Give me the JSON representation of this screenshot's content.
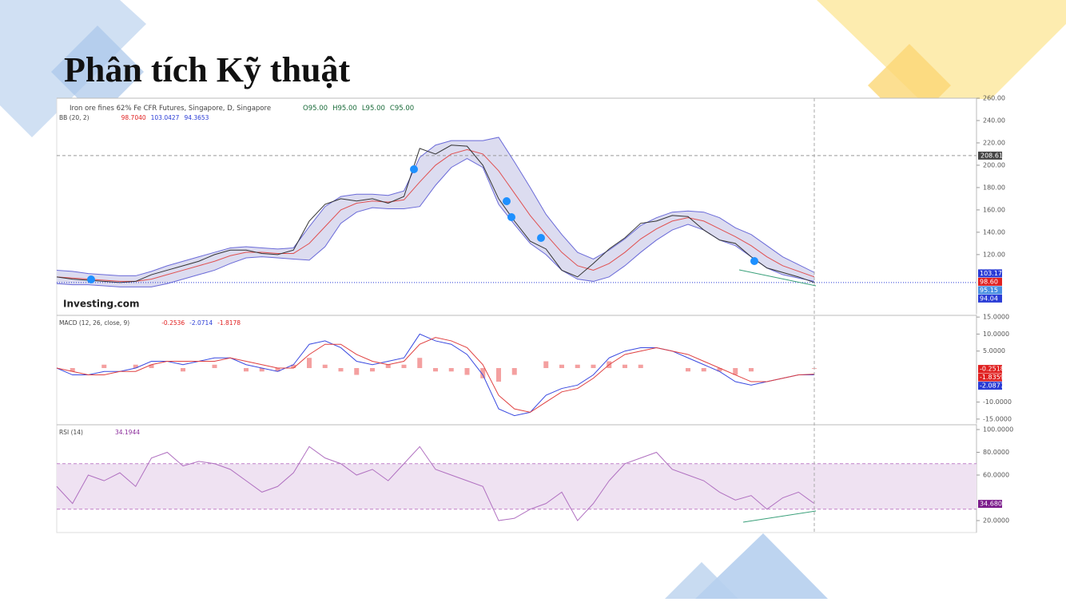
{
  "title": "Phân tích Kỹ thuật",
  "chart_data": [
    {
      "type": "line",
      "title": "Iron ore fines 62% Fe CFR Futures, Singapore, D, Singapore",
      "ohlc": [
        "O95.00",
        "H95.00",
        "L95.00",
        "C95.00"
      ],
      "indicator": "BB (20, 2)",
      "indicator_values": [
        {
          "label": "98.7040",
          "color": "#e02020"
        },
        {
          "label": "103.0427",
          "color": "#2a3cd6"
        },
        {
          "label": "94.3653",
          "color": "#2a3cd6"
        }
      ],
      "watermark": "Investing.com",
      "ylim": [
        67,
        260
      ],
      "yticks": [
        {
          "value": 260,
          "label": "260.00"
        },
        {
          "value": 240,
          "label": "240.00"
        },
        {
          "value": 220,
          "label": "220.00"
        },
        {
          "value": 200,
          "label": "200.00"
        },
        {
          "value": 180,
          "label": "180.00"
        },
        {
          "value": 160,
          "label": "160.00"
        },
        {
          "value": 140,
          "label": "140.00"
        },
        {
          "value": 120,
          "label": "120.00"
        }
      ],
      "band_fill": "#dcdcf0",
      "crosshair": {
        "value": 208.61,
        "label": "208.61",
        "color": "#444444"
      },
      "tags": [
        {
          "value": 103.17,
          "label": "103.17",
          "color": "#2a3cd6"
        },
        {
          "value": 98.6,
          "label": "98.60",
          "color": "#e02020"
        },
        {
          "value": 95.15,
          "label": "95.15",
          "color": "#4a90e2"
        },
        {
          "value": 94.04,
          "label": "94.04",
          "color": "#2a3cd6"
        }
      ],
      "series": [
        {
          "color": "#6a6ad8",
          "values": [
            106,
            105,
            103,
            102,
            101,
            101,
            105,
            110,
            114,
            118,
            122,
            126,
            127,
            126,
            125,
            126,
            145,
            163,
            172,
            174,
            174,
            173,
            177,
            207,
            218,
            222,
            222,
            222,
            225,
            203,
            180,
            156,
            138,
            122,
            116,
            124,
            134,
            146,
            153,
            158,
            159,
            158,
            153,
            144,
            138,
            128,
            118,
            111,
            104
          ]
        },
        {
          "color": "#6a6ad8",
          "values": [
            94,
            93,
            93,
            92,
            91,
            91,
            91,
            94,
            98,
            102,
            106,
            112,
            117,
            118,
            117,
            116,
            115,
            127,
            148,
            158,
            162,
            161,
            161,
            163,
            182,
            198,
            206,
            198,
            165,
            147,
            130,
            120,
            106,
            98,
            96,
            100,
            110,
            122,
            133,
            142,
            147,
            142,
            133,
            128,
            118,
            108,
            102,
            99,
            96
          ]
        },
        {
          "color": "#e05050",
          "values": [
            100,
            99,
            98,
            97,
            96,
            96,
            98,
            102,
            106,
            110,
            114,
            119,
            122,
            122,
            121,
            121,
            130,
            145,
            160,
            166,
            168,
            167,
            169,
            185,
            200,
            210,
            214,
            210,
            195,
            175,
            155,
            138,
            122,
            110,
            106,
            112,
            122,
            134,
            143,
            150,
            153,
            150,
            143,
            136,
            128,
            118,
            110,
            105,
            100
          ]
        },
        {
          "color": "#333333",
          "values": [
            100,
            98,
            97,
            96,
            95,
            96,
            102,
            106,
            110,
            114,
            120,
            124,
            124,
            121,
            120,
            124,
            150,
            165,
            170,
            168,
            170,
            166,
            172,
            215,
            210,
            218,
            217,
            200,
            170,
            150,
            132,
            125,
            106,
            100,
            112,
            125,
            135,
            148,
            150,
            155,
            154,
            142,
            133,
            130,
            118,
            108,
            104,
            100,
            95
          ]
        }
      ]
    },
    {
      "type": "line",
      "indicator": "MACD (12, 26, close, 9)",
      "indicator_values": [
        {
          "label": "-0.2536",
          "color": "#e02020"
        },
        {
          "label": "-2.0714",
          "color": "#2a3cd6"
        },
        {
          "label": "-1.8178",
          "color": "#e02020"
        }
      ],
      "ylim": [
        -16.2,
        15.5
      ],
      "yticks": [
        {
          "value": 15,
          "label": "15.0000"
        },
        {
          "value": 10,
          "label": "10.0000"
        },
        {
          "value": 5,
          "label": "5.0000"
        },
        {
          "value": -10,
          "label": "-10.0000"
        },
        {
          "value": -15,
          "label": "-15.0000"
        }
      ],
      "tags": [
        {
          "value": -0.2518,
          "label": "-0.2518",
          "color": "#e02020"
        },
        {
          "value": -1.8359,
          "label": "-1.8359",
          "color": "#e02020"
        },
        {
          "value": -2.0877,
          "label": "-2.0877",
          "color": "#2a3cd6"
        }
      ],
      "series": [
        {
          "type": "bar",
          "color": "#f4a0a0",
          "values": [
            0,
            -1,
            0,
            1,
            0,
            1,
            1,
            0,
            -1,
            0,
            1,
            0,
            -1,
            -1,
            -1,
            1,
            3,
            1,
            -1,
            -2,
            -1,
            1,
            1,
            3,
            -1,
            -1,
            -2,
            -3,
            -4,
            -2,
            0,
            2,
            1,
            1,
            1,
            2,
            1,
            1,
            0,
            0,
            -1,
            -1,
            -1,
            -2,
            -1,
            0,
            0,
            0,
            -0.2
          ]
        },
        {
          "color": "#3a4ae0",
          "values": [
            0,
            -2,
            -2,
            -1,
            -1,
            0,
            2,
            2,
            1,
            2,
            3,
            3,
            1,
            0,
            -1,
            1,
            7,
            8,
            6,
            2,
            1,
            2,
            3,
            10,
            8,
            7,
            4,
            -2,
            -12,
            -14,
            -13,
            -8,
            -6,
            -5,
            -2,
            3,
            5,
            6,
            6,
            5,
            3,
            1,
            -1,
            -4,
            -5,
            -4,
            -3,
            -2,
            -2
          ]
        },
        {
          "color": "#e04040",
          "values": [
            0,
            -1,
            -2,
            -2,
            -1,
            -1,
            1,
            2,
            2,
            2,
            2,
            3,
            2,
            1,
            0,
            0,
            4,
            7,
            7,
            4,
            2,
            1,
            2,
            7,
            9,
            8,
            6,
            1,
            -8,
            -12,
            -13,
            -10,
            -7,
            -6,
            -3,
            1,
            4,
            5,
            6,
            5,
            4,
            2,
            0,
            -2,
            -4,
            -4,
            -3,
            -2,
            -1.8
          ]
        }
      ]
    },
    {
      "type": "line",
      "indicator": "RSI (14)",
      "indicator_values": [
        {
          "label": "34.1944",
          "color": "#8a2a9a"
        }
      ],
      "ylim": [
        9.5,
        104.2
      ],
      "yticks": [
        {
          "value": 100,
          "label": "100.0000"
        },
        {
          "value": 80,
          "label": "80.0000"
        },
        {
          "value": 60,
          "label": "60.0000"
        },
        {
          "value": 20,
          "label": "20.0000"
        }
      ],
      "band": [
        30,
        70
      ],
      "band_fill": "#efe2f2",
      "tags": [
        {
          "value": 34.6803,
          "label": "34.6803",
          "color": "#7a1a8a"
        }
      ],
      "series": [
        {
          "color": "#b070c0",
          "values": [
            50,
            35,
            60,
            55,
            62,
            50,
            75,
            80,
            68,
            72,
            70,
            65,
            55,
            45,
            50,
            62,
            85,
            75,
            70,
            60,
            65,
            55,
            70,
            85,
            65,
            60,
            55,
            50,
            20,
            22,
            30,
            35,
            45,
            20,
            35,
            55,
            70,
            75,
            80,
            65,
            60,
            55,
            45,
            38,
            42,
            30,
            40,
            45,
            35
          ]
        }
      ]
    }
  ]
}
